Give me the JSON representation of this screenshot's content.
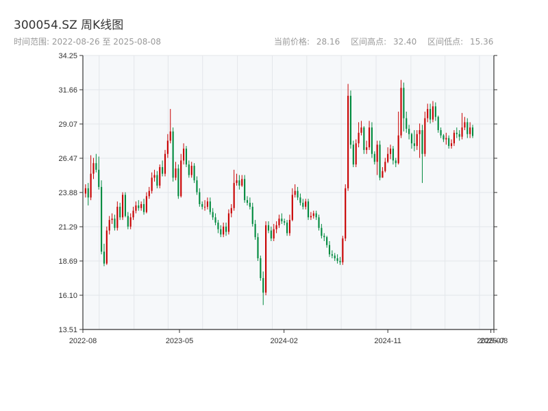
{
  "header": {
    "title": "300054.SZ 周K线图",
    "range_label": "时间范围:",
    "range_start": "2022-08-26",
    "range_sep": "至",
    "range_end": "2025-08-08",
    "current_label": "当前价格:",
    "current_value": "28.16",
    "high_label": "区间高点:",
    "high_value": "32.40",
    "low_label": "区间低点:",
    "low_value": "15.36"
  },
  "colors": {
    "up": "#c80000",
    "down": "#008a3e",
    "plot_bg": "#f6f8fa",
    "grid": "#e3e6ea",
    "axis": "#333333"
  },
  "chart_data": {
    "type": "candlestick",
    "title": "300054.SZ 周K线图",
    "x_start": "2022-08-26",
    "x_end": "2025-08-08",
    "ylim": [
      13.51,
      34.25
    ],
    "yticks": [
      "34.25",
      "31.66",
      "29.07",
      "26.47",
      "23.88",
      "21.29",
      "18.69",
      "16.10",
      "13.51"
    ],
    "xticks": [
      {
        "date": "2022-08-01",
        "label": "2022-08"
      },
      {
        "date": "2023-05-01",
        "label": "2023-05"
      },
      {
        "date": "2024-02-01",
        "label": "2024-02"
      },
      {
        "date": "2024-11-01",
        "label": "2024-11"
      },
      {
        "date": "2025-07-31",
        "label": "2025-07"
      },
      {
        "date": "2025-08-08",
        "label": "2025-08"
      }
    ],
    "grid": true,
    "interval": "weekly",
    "close": [
      24.2,
      23.5,
      25.3,
      26.1,
      25.6,
      24.3,
      19.4,
      18.5,
      21.0,
      21.8,
      21.9,
      21.2,
      22.8,
      22.0,
      23.7,
      22.1,
      21.3,
      22.0,
      22.5,
      22.9,
      22.7,
      23.0,
      22.4,
      23.6,
      24.0,
      25.0,
      25.2,
      24.4,
      25.8,
      25.3,
      26.8,
      27.8,
      28.5,
      25.0,
      25.7,
      23.6,
      26.3,
      27.2,
      26.0,
      25.2,
      25.9,
      24.8,
      23.9,
      23.0,
      22.8,
      22.8,
      23.2,
      22.4,
      22.0,
      21.6,
      21.1,
      20.7,
      21.3,
      20.9,
      22.3,
      22.7,
      24.6,
      24.8,
      24.4,
      24.9,
      23.3,
      23.1,
      22.8,
      21.5,
      20.5,
      18.9,
      17.4,
      16.3,
      21.4,
      21.0,
      20.4,
      21.1,
      21.4,
      21.9,
      21.7,
      21.6,
      20.8,
      21.8,
      23.7,
      24.0,
      23.5,
      23.1,
      22.8,
      23.2,
      22.0,
      22.1,
      22.3,
      22.0,
      21.2,
      20.6,
      20.5,
      19.9,
      19.2,
      19.1,
      18.9,
      18.7,
      18.6,
      20.4,
      24.2,
      31.2,
      27.5,
      26.0,
      27.6,
      28.4,
      28.8,
      27.1,
      27.3,
      28.8,
      26.8,
      26.2,
      27.5,
      25.0,
      25.5,
      26.2,
      26.8,
      27.2,
      26.3,
      26.1,
      28.2,
      31.8,
      29.5,
      28.7,
      28.3,
      27.6,
      27.4,
      28.3,
      28.6,
      26.8,
      29.5,
      30.2,
      29.4,
      30.4,
      29.6,
      28.6,
      28.2,
      27.9,
      28.0,
      27.4,
      27.6,
      28.4,
      28.3,
      28.1,
      28.8,
      29.2,
      28.3,
      28.8,
      28.16
    ],
    "open": [
      23.8,
      24.2,
      23.5,
      25.3,
      26.1,
      25.6,
      24.3,
      19.4,
      18.5,
      21.0,
      21.8,
      21.9,
      21.2,
      22.8,
      22.0,
      23.7,
      22.1,
      21.3,
      22.0,
      22.5,
      22.9,
      22.7,
      23.0,
      22.4,
      23.6,
      24.0,
      25.0,
      25.2,
      24.4,
      25.8,
      25.3,
      26.8,
      27.8,
      28.5,
      25.0,
      25.7,
      23.6,
      26.3,
      27.2,
      26.0,
      25.2,
      25.9,
      24.8,
      23.9,
      23.0,
      22.8,
      22.8,
      23.2,
      22.4,
      22.0,
      21.6,
      21.1,
      20.7,
      21.3,
      20.9,
      22.3,
      22.7,
      24.6,
      24.8,
      24.4,
      24.9,
      23.3,
      23.1,
      22.8,
      21.5,
      20.5,
      18.9,
      17.4,
      16.3,
      21.4,
      21.0,
      20.4,
      21.1,
      21.4,
      21.9,
      21.7,
      21.6,
      20.8,
      21.8,
      23.7,
      24.0,
      23.5,
      23.1,
      22.8,
      23.2,
      22.0,
      22.1,
      22.3,
      22.0,
      21.2,
      20.6,
      20.5,
      19.9,
      19.2,
      19.1,
      18.9,
      18.7,
      18.6,
      20.4,
      24.2,
      31.2,
      27.5,
      26.0,
      27.6,
      28.4,
      28.8,
      27.1,
      27.3,
      28.8,
      26.8,
      26.2,
      27.5,
      25.0,
      25.5,
      26.2,
      26.8,
      27.2,
      26.3,
      26.1,
      28.2,
      31.8,
      29.5,
      28.7,
      28.3,
      27.6,
      27.4,
      28.3,
      28.6,
      26.8,
      29.5,
      30.2,
      29.4,
      30.4,
      29.6,
      28.6,
      28.2,
      27.9,
      28.0,
      27.4,
      27.6,
      28.4,
      28.3,
      28.1,
      28.8,
      29.2,
      28.3,
      28.8
    ],
    "high": [
      24.5,
      24.6,
      26.7,
      26.5,
      26.8,
      26.6,
      24.8,
      20.0,
      21.3,
      22.1,
      22.3,
      22.2,
      23.2,
      23.1,
      23.9,
      23.9,
      22.4,
      22.3,
      22.8,
      23.2,
      23.3,
      23.2,
      23.4,
      23.9,
      24.3,
      25.4,
      25.6,
      25.5,
      26.0,
      26.3,
      27.1,
      28.3,
      30.2,
      28.8,
      26.2,
      26.0,
      26.8,
      27.6,
      27.4,
      26.3,
      26.2,
      26.1,
      25.1,
      24.2,
      23.2,
      23.3,
      23.5,
      23.5,
      22.7,
      22.3,
      21.8,
      21.4,
      21.6,
      21.6,
      22.6,
      23.0,
      25.6,
      25.3,
      25.2,
      25.2,
      25.2,
      23.6,
      23.5,
      23.1,
      21.8,
      20.8,
      19.1,
      17.9,
      21.7,
      21.7,
      21.3,
      21.5,
      21.7,
      22.2,
      22.3,
      21.9,
      21.8,
      22.2,
      24.2,
      24.5,
      24.3,
      23.8,
      23.4,
      23.4,
      23.4,
      22.4,
      22.5,
      22.5,
      22.2,
      21.5,
      20.8,
      20.6,
      20.2,
      19.5,
      19.3,
      19.2,
      19.0,
      20.6,
      24.5,
      32.1,
      31.6,
      27.8,
      27.9,
      29.2,
      29.3,
      28.9,
      27.8,
      29.3,
      29.2,
      27.0,
      27.8,
      27.8,
      25.8,
      26.5,
      27.3,
      27.5,
      27.4,
      26.5,
      30.0,
      32.4,
      32.2,
      30.0,
      29.0,
      28.4,
      28.6,
      28.6,
      29.1,
      29.0,
      30.0,
      30.6,
      30.6,
      30.8,
      30.7,
      29.7,
      28.8,
      28.3,
      28.4,
      28.2,
      27.9,
      28.6,
      28.8,
      28.6,
      29.9,
      29.6,
      29.5,
      29.2,
      29.0
    ],
    "low": [
      23.5,
      22.9,
      23.3,
      24.9,
      25.4,
      24.1,
      19.2,
      18.3,
      18.4,
      20.7,
      21.5,
      21.0,
      21.0,
      21.8,
      21.8,
      22.0,
      21.1,
      21.1,
      21.8,
      22.3,
      22.5,
      22.5,
      22.2,
      22.3,
      23.4,
      23.8,
      24.7,
      24.2,
      24.2,
      25.1,
      25.1,
      26.5,
      27.6,
      24.7,
      24.8,
      23.4,
      23.5,
      26.0,
      25.8,
      25.0,
      25.0,
      24.6,
      23.7,
      22.8,
      22.6,
      22.5,
      22.6,
      22.2,
      21.8,
      21.4,
      20.8,
      20.5,
      20.5,
      20.6,
      20.7,
      22.0,
      22.5,
      24.4,
      24.1,
      24.3,
      23.1,
      22.9,
      22.6,
      21.3,
      20.3,
      18.7,
      17.2,
      15.36,
      16.1,
      20.8,
      20.2,
      20.2,
      20.8,
      21.2,
      21.5,
      21.4,
      20.6,
      20.6,
      21.7,
      23.5,
      23.3,
      22.9,
      22.6,
      22.6,
      21.8,
      21.8,
      21.9,
      21.8,
      21.0,
      20.4,
      20.2,
      19.7,
      19.0,
      18.9,
      18.7,
      18.5,
      18.4,
      18.4,
      20.2,
      24.0,
      27.2,
      25.8,
      25.8,
      27.3,
      28.2,
      26.8,
      26.8,
      27.1,
      26.5,
      26.0,
      25.2,
      24.8,
      25.0,
      25.4,
      26.1,
      26.4,
      26.0,
      25.8,
      26.0,
      28.0,
      28.5,
      28.4,
      27.9,
      27.2,
      27.0,
      27.1,
      26.5,
      24.6,
      26.6,
      29.2,
      29.1,
      29.2,
      29.3,
      28.4,
      28.0,
      27.7,
      27.5,
      27.2,
      27.2,
      27.4,
      28.0,
      27.8,
      27.9,
      28.6,
      28.0,
      28.0,
      28.0
    ]
  }
}
